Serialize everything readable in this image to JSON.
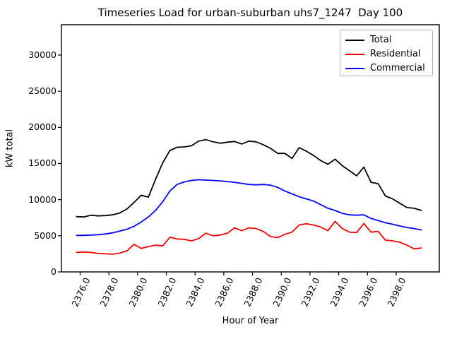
{
  "chart_data": {
    "type": "line",
    "title": "Timeseries Load for urban-suburban uhs7_1247  Day 100",
    "xlabel": "Hour of Year",
    "ylabel": "kW total",
    "xlim": [
      2374.7,
      2401.0
    ],
    "ylim": [
      0,
      34200
    ],
    "grid": false,
    "legend_position": "upper right",
    "x_ticks": [
      2376,
      2378,
      2380,
      2382,
      2384,
      2386,
      2388,
      2390,
      2392,
      2394,
      2396,
      2398
    ],
    "x_tick_labels": [
      "2376.0",
      "2378.0",
      "2380.0",
      "2382.0",
      "2384.0",
      "2386.0",
      "2388.0",
      "2390.0",
      "2392.0",
      "2394.0",
      "2396.0",
      "2398.0"
    ],
    "y_ticks": [
      0,
      5000,
      10000,
      15000,
      20000,
      25000,
      30000
    ],
    "y_tick_labels": [
      "0",
      "5000",
      "10000",
      "15000",
      "20000",
      "25000",
      "30000"
    ],
    "x": [
      2375.75,
      2376.25,
      2376.75,
      2377.25,
      2377.75,
      2378.25,
      2378.75,
      2379.25,
      2379.75,
      2380.25,
      2380.75,
      2381.25,
      2381.75,
      2382.25,
      2382.75,
      2383.25,
      2383.75,
      2384.25,
      2384.75,
      2385.25,
      2385.75,
      2386.25,
      2386.75,
      2387.25,
      2387.75,
      2388.25,
      2388.75,
      2389.25,
      2389.75,
      2390.25,
      2390.75,
      2391.25,
      2391.75,
      2392.25,
      2392.75,
      2393.25,
      2393.75,
      2394.25,
      2394.75,
      2395.25,
      2395.75,
      2396.25,
      2396.75,
      2397.25,
      2397.75,
      2398.25,
      2398.75,
      2399.25,
      2399.75
    ],
    "series": [
      {
        "name": "Total",
        "color": "#000000",
        "values": [
          7650,
          7600,
          7850,
          7750,
          7800,
          7900,
          8150,
          8700,
          9600,
          10600,
          10350,
          12800,
          15100,
          16800,
          17250,
          17300,
          17450,
          18100,
          18300,
          18000,
          17800,
          17950,
          18050,
          17700,
          18100,
          18000,
          17600,
          17100,
          16400,
          16400,
          15700,
          17200,
          16700,
          16100,
          15400,
          14900,
          15600,
          14700,
          14000,
          13300,
          14500,
          12400,
          12200,
          10500,
          10100,
          9500,
          8900,
          8800,
          8500
        ]
      },
      {
        "name": "Residential",
        "color": "#ff0000",
        "values": [
          2700,
          2750,
          2700,
          2550,
          2500,
          2450,
          2600,
          2900,
          3800,
          3250,
          3500,
          3700,
          3600,
          4800,
          4550,
          4500,
          4300,
          4600,
          5350,
          5000,
          5100,
          5350,
          6100,
          5700,
          6100,
          6000,
          5600,
          4900,
          4750,
          5200,
          5500,
          6500,
          6650,
          6500,
          6200,
          5700,
          7000,
          6000,
          5500,
          5450,
          6700,
          5500,
          5600,
          4400,
          4300,
          4100,
          3700,
          3200,
          3300
        ]
      },
      {
        "name": "Commercial",
        "color": "#0000ff",
        "values": [
          5050,
          5050,
          5100,
          5150,
          5250,
          5400,
          5650,
          5900,
          6300,
          6900,
          7600,
          8500,
          9700,
          11200,
          12100,
          12450,
          12650,
          12750,
          12700,
          12650,
          12600,
          12500,
          12400,
          12250,
          12100,
          12050,
          12100,
          12000,
          11700,
          11200,
          10800,
          10400,
          10100,
          9800,
          9300,
          8800,
          8500,
          8100,
          7900,
          7850,
          7900,
          7400,
          7100,
          6800,
          6600,
          6350,
          6150,
          6000,
          5800
        ]
      }
    ]
  }
}
